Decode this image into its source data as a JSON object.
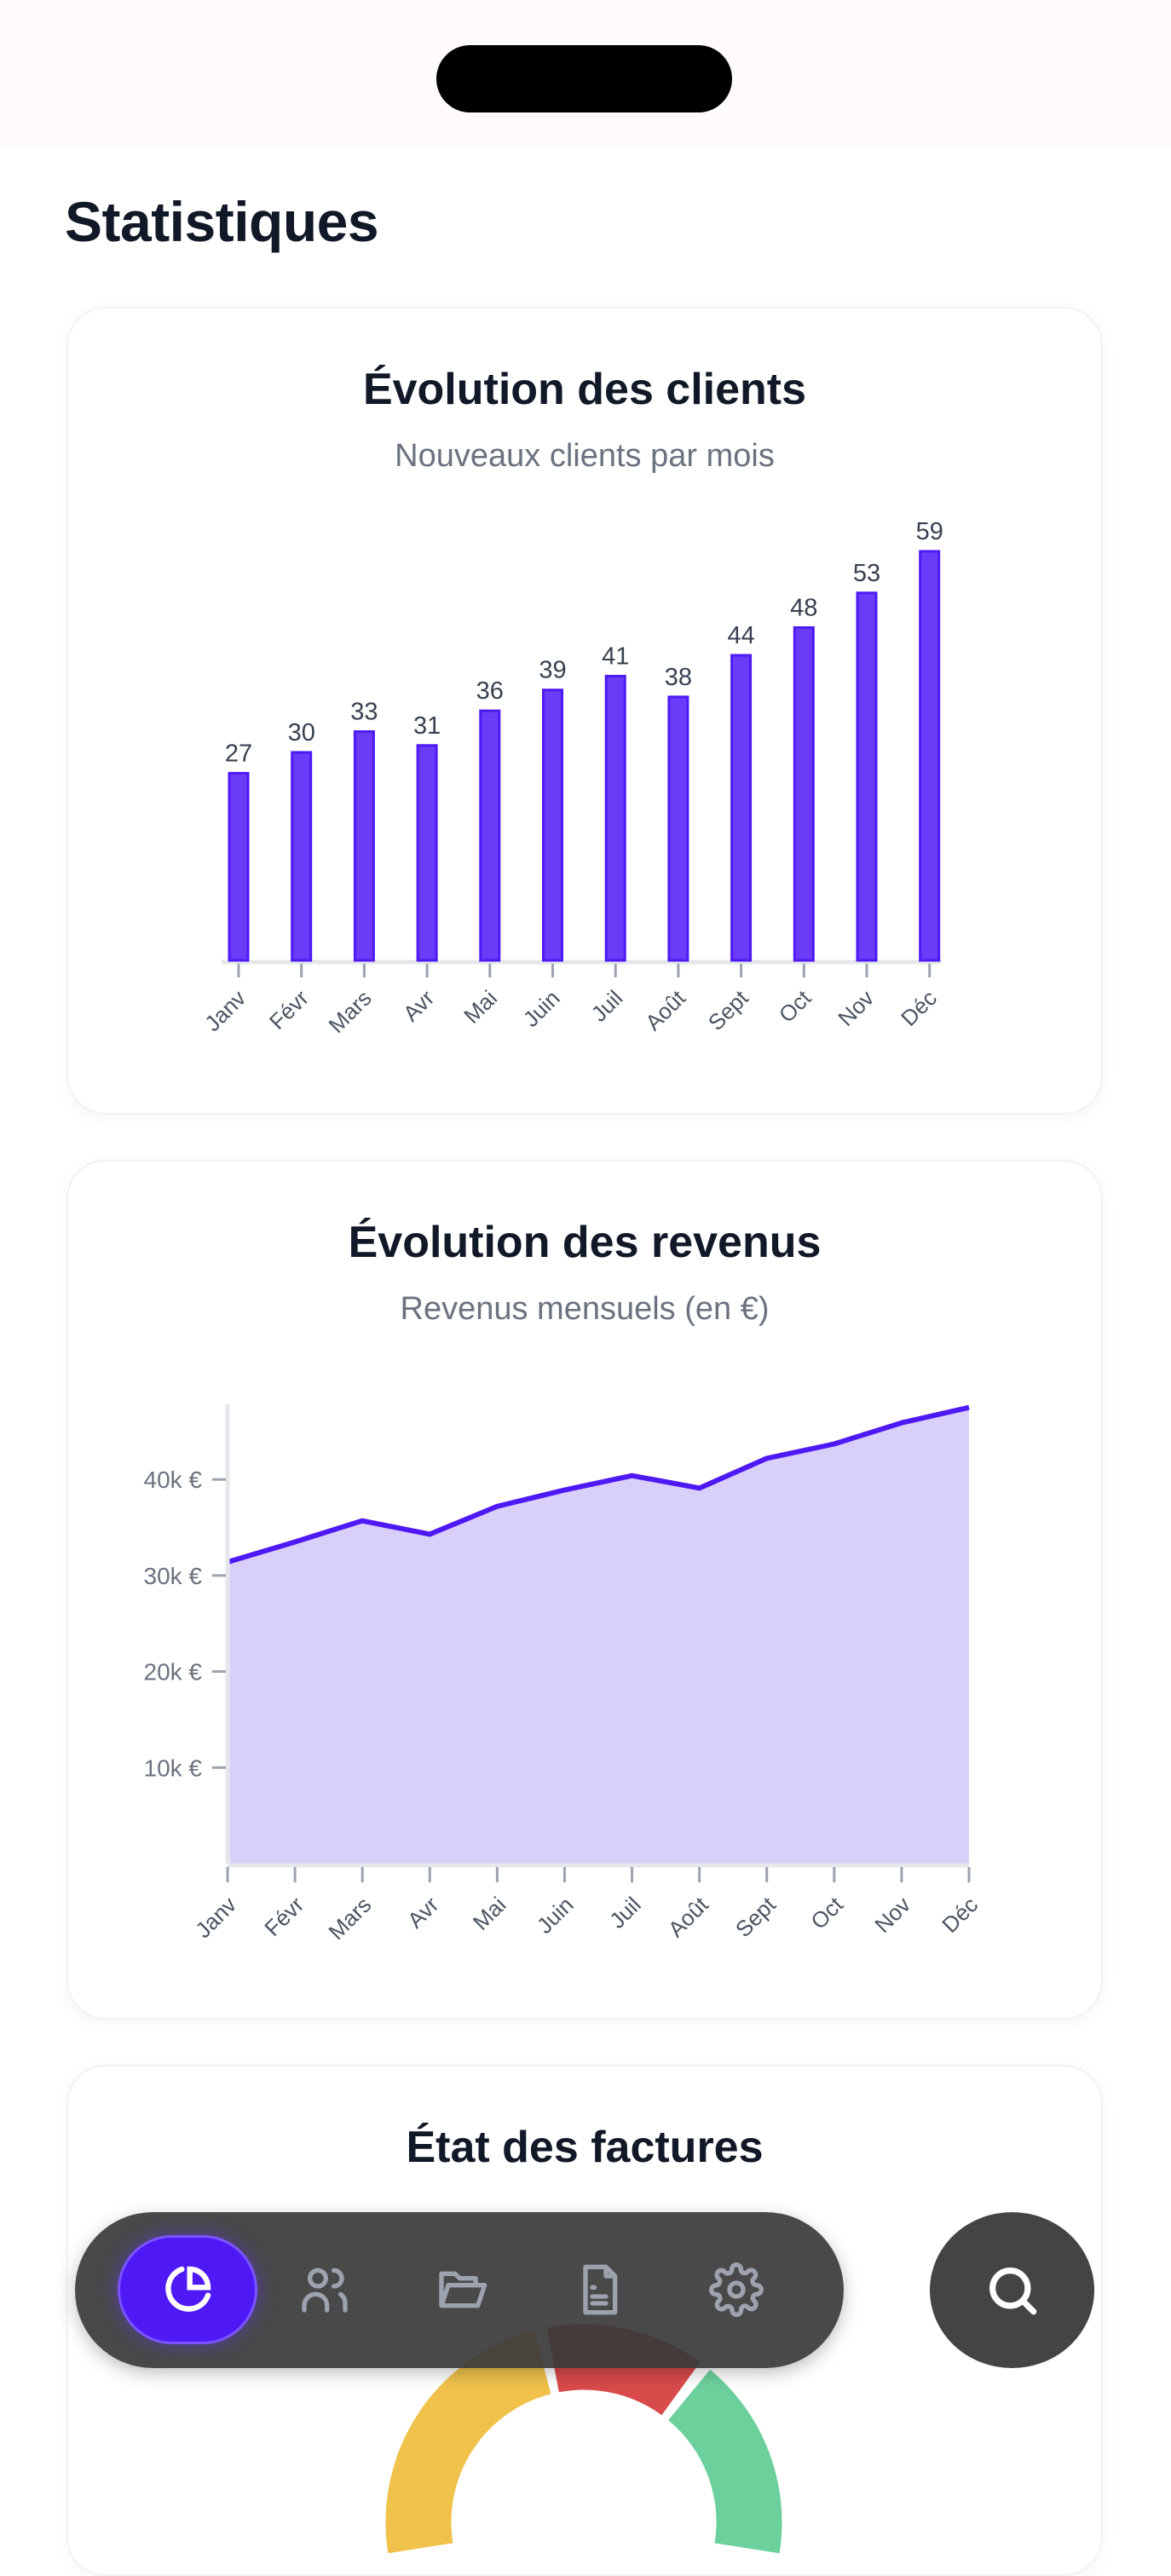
{
  "page": {
    "title": "Statistiques"
  },
  "colors": {
    "accent": "#4f19f5",
    "bar_fill": "#6a3cf7",
    "area_fill": "#d9d0f9",
    "line": "#4f19f5",
    "axis": "#e5e7eb",
    "tick": "#6b7280",
    "donut": [
      "#f0c24b",
      "#d94a4a",
      "#6cd09c"
    ]
  },
  "chart_data": [
    {
      "type": "bar",
      "title": "Évolution des clients",
      "subtitle": "Nouveaux clients par mois",
      "categories": [
        "Janv",
        "Févr",
        "Mars",
        "Avr",
        "Mai",
        "Juin",
        "Juil",
        "Août",
        "Sept",
        "Oct",
        "Nov",
        "Déc"
      ],
      "values": [
        27,
        30,
        33,
        31,
        36,
        39,
        41,
        38,
        44,
        48,
        53,
        59
      ],
      "xlabel": "",
      "ylabel": "",
      "ylim": [
        0,
        59
      ],
      "grid": false,
      "data_labels": true
    },
    {
      "type": "area",
      "title": "Évolution des revenus",
      "subtitle": "Revenus mensuels (en €)",
      "categories": [
        "Janv",
        "Févr",
        "Mars",
        "Avr",
        "Mai",
        "Juin",
        "Juil",
        "Août",
        "Sept",
        "Oct",
        "Nov",
        "Déc"
      ],
      "values": [
        31400,
        33500,
        35700,
        34300,
        37200,
        38900,
        40400,
        39100,
        42200,
        43700,
        45900,
        47500
      ],
      "yticks": [
        10000,
        20000,
        30000,
        40000
      ],
      "ytick_labels": [
        "10k €",
        "20k €",
        "30k €",
        "40k €"
      ],
      "ylim": [
        0,
        48000
      ],
      "grid": false
    },
    {
      "type": "pie",
      "title": "État des factures"
    }
  ],
  "nav": {
    "items": [
      {
        "icon": "pie-chart-icon",
        "active": true
      },
      {
        "icon": "users-icon",
        "active": false
      },
      {
        "icon": "folder-icon",
        "active": false
      },
      {
        "icon": "document-icon",
        "active": false
      },
      {
        "icon": "gear-icon",
        "active": false
      }
    ],
    "search_icon": "search-icon"
  }
}
